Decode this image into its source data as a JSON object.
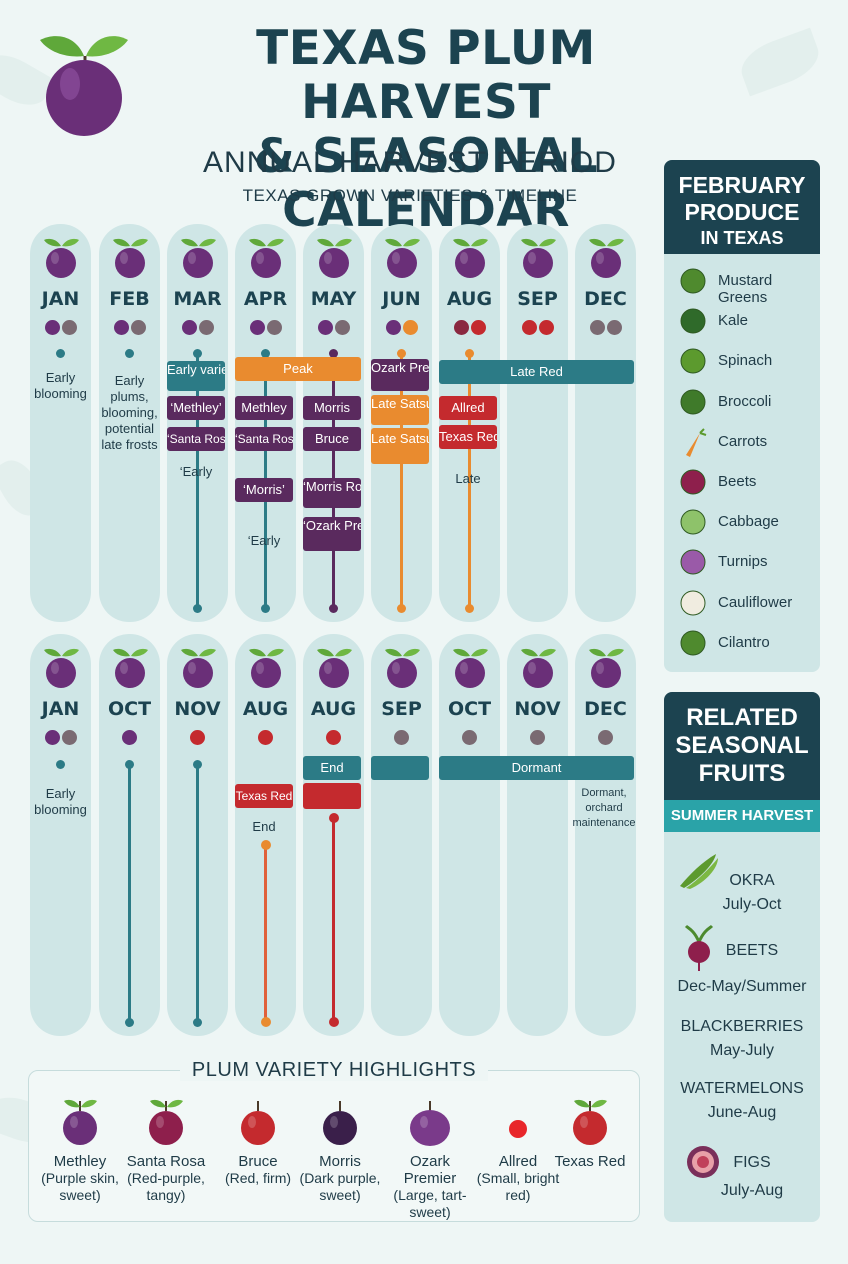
{
  "header": {
    "title_line1": "TEXAS PLUM HARVEST",
    "title_line2": "& SEASONAL CALENDAR",
    "subtitle": "ANNUAL HARVEST PERIOD",
    "subsubtitle": "TEXAS GROWN VARIETIES & TIMELINE"
  },
  "colors": {
    "teal": "#2c7b86",
    "orange": "#e98b2f",
    "purple": "#5a2a5e",
    "red": "#c42a2e",
    "navy": "#1c4350",
    "column": "#cfe6e6"
  },
  "row1": {
    "months": [
      "JAN",
      "FEB",
      "MAR",
      "APR",
      "MAY",
      "JUN",
      "AUG",
      "SEP",
      "DEC"
    ],
    "notes": {
      "jan": "Early blooming",
      "feb": "Early plums, blooming, potential late frosts",
      "mar_early": "‘Early",
      "apr_early": "‘Early",
      "aug_late": "Late"
    },
    "tags": {
      "early_varieties": "Early varieties",
      "peak": "Peak",
      "ozark_premier": "Ozark Premier",
      "late_red": "Late Red",
      "methley_q": "‘Methley’",
      "methley": "Methley",
      "morris": "Morris",
      "late_satsuma_1": "Late Satsuma",
      "allred": "Allred",
      "santa_rosa_q1": "‘Santa Rosa’",
      "santa_rosa_q2": "‘Santa Rosa’",
      "bruce": "Bruce",
      "late_satsuma_2": "Late Satsuma",
      "texas_red": "Texas Red",
      "morris_q": "‘Morris’",
      "morris_rosa": "‘Morris Rosa’",
      "ozark_premisr": "‘Ozark Premisr"
    }
  },
  "row2": {
    "months": [
      "JAN",
      "OCT",
      "NOV",
      "AUG",
      "AUG",
      "SEP",
      "OCT",
      "NOV",
      "DEC"
    ],
    "notes": {
      "jan": "Early blooming",
      "aug_end": "End",
      "dec": "Dormant, orchard maintenance"
    },
    "tags": {
      "end": "End",
      "dormant": "Dormant",
      "texas_red": "Texas Red"
    }
  },
  "february_panel": {
    "title_line1": "FEBRUARY",
    "title_line2": "PRODUCE",
    "title_line3": "IN TEXAS",
    "items": [
      "Mustard Greens",
      "Kale",
      "Spinach",
      "Broccoli",
      "Carrots",
      "Beets",
      "Cabbage",
      "Turnips",
      "Cauliflower",
      "Cilantro"
    ]
  },
  "related_panel": {
    "title_line1": "RELATED",
    "title_line2": "SEASONAL",
    "title_line3": "FRUITS",
    "section": "SUMMER HARVEST",
    "items": [
      {
        "name": "OKRA",
        "season": "July-Oct"
      },
      {
        "name": "BEETS",
        "season": "Dec-May/Summer"
      },
      {
        "name": "BLACKBERRIES",
        "season": "May-July"
      },
      {
        "name": "WATERMELONS",
        "season": "June-Aug"
      },
      {
        "name": "FIGS",
        "season": "July-Aug"
      }
    ]
  },
  "varieties": {
    "title": "PLUM VARIETY HIGHLIGHTS",
    "items": [
      {
        "name": "Methley",
        "desc": "(Purple skin, sweet)"
      },
      {
        "name": "Santa Rosa",
        "desc": "(Red-purple, tangy)"
      },
      {
        "name": "Bruce",
        "desc": "(Red, firm)"
      },
      {
        "name": "Morris",
        "desc": "(Dark purple, sweet)"
      },
      {
        "name": "Ozark Premier",
        "desc": "(Large, tart-sweet)"
      },
      {
        "name": "Allred",
        "desc": "(Small, bright red)"
      },
      {
        "name": "Texas Red",
        "desc": ""
      }
    ]
  }
}
